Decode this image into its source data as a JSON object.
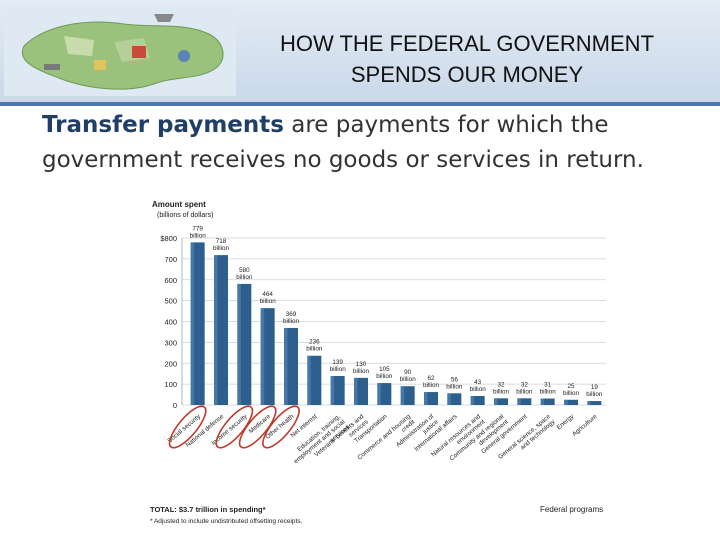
{
  "slide": {
    "title_lines": [
      "HOW THE FEDERAL GOVERNMENT",
      "SPENDS OUR MONEY"
    ],
    "subtitle_lead": "Transfer payments",
    "subtitle_rest": " are payments for which the government receives no goods or services in return."
  },
  "colors": {
    "bar": "#2d5f8e",
    "bar_light": "#5f8fbd",
    "grid": "#c9d3df",
    "circle": "#c0392b",
    "accent": "#4f79ad"
  },
  "chart_data": {
    "type": "bar",
    "title": "Amount spent",
    "subtitle": "(billions of dollars)",
    "xlabel": "Federal programs",
    "ylim": [
      0,
      800
    ],
    "y_ticks": [
      "$800",
      "700",
      "600",
      "500",
      "400",
      "300",
      "200",
      "100",
      "0"
    ],
    "grid": true,
    "categories": [
      "Social security",
      "National defense",
      "Income security",
      "Medicare",
      "Other health",
      "Net interest",
      "Education, training, employment and social services",
      "Veterans' benefits and services",
      "Transportation",
      "Commerce and housing credit",
      "Administration of justice",
      "International affairs",
      "Natural resources and environment",
      "Community and regional development",
      "General government",
      "General science, space and technology",
      "Energy",
      "Agriculture"
    ],
    "values": [
      779,
      718,
      580,
      464,
      369,
      236,
      139,
      130,
      105,
      90,
      62,
      56,
      43,
      32,
      32,
      31,
      25,
      19
    ],
    "value_labels": [
      "779 billion",
      "718 billion",
      "580 billion",
      "464 billion",
      "369 billion",
      "236 billion",
      "139 billion",
      "130 billion",
      "105 billion",
      "90 billion",
      "62 billion",
      "56 billion",
      "43 billion",
      "32 billion",
      "32 billion",
      "31 billion",
      "25 billion",
      "19 billion"
    ],
    "circled_categories": [
      "Social security",
      "Income security",
      "Medicare",
      "Other health"
    ],
    "footnotes": {
      "total": "TOTAL: $3.7 trillion in spending*",
      "adjusted": "* Adjusted to include undistributed offsetting receipts."
    }
  }
}
